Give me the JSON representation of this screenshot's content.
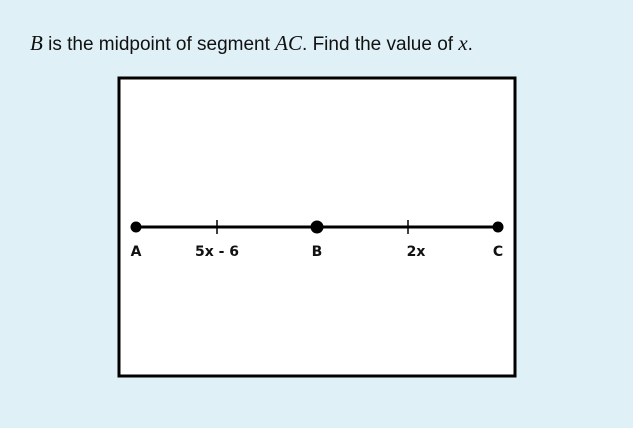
{
  "question": {
    "runs": [
      "B",
      " is the midpoint of segment ",
      "AC",
      ". Find the value of ",
      "x",
      "."
    ]
  },
  "diagram": {
    "points": [
      "A",
      "B",
      "C"
    ],
    "segments": [
      "5x - 6",
      "2x"
    ]
  }
}
